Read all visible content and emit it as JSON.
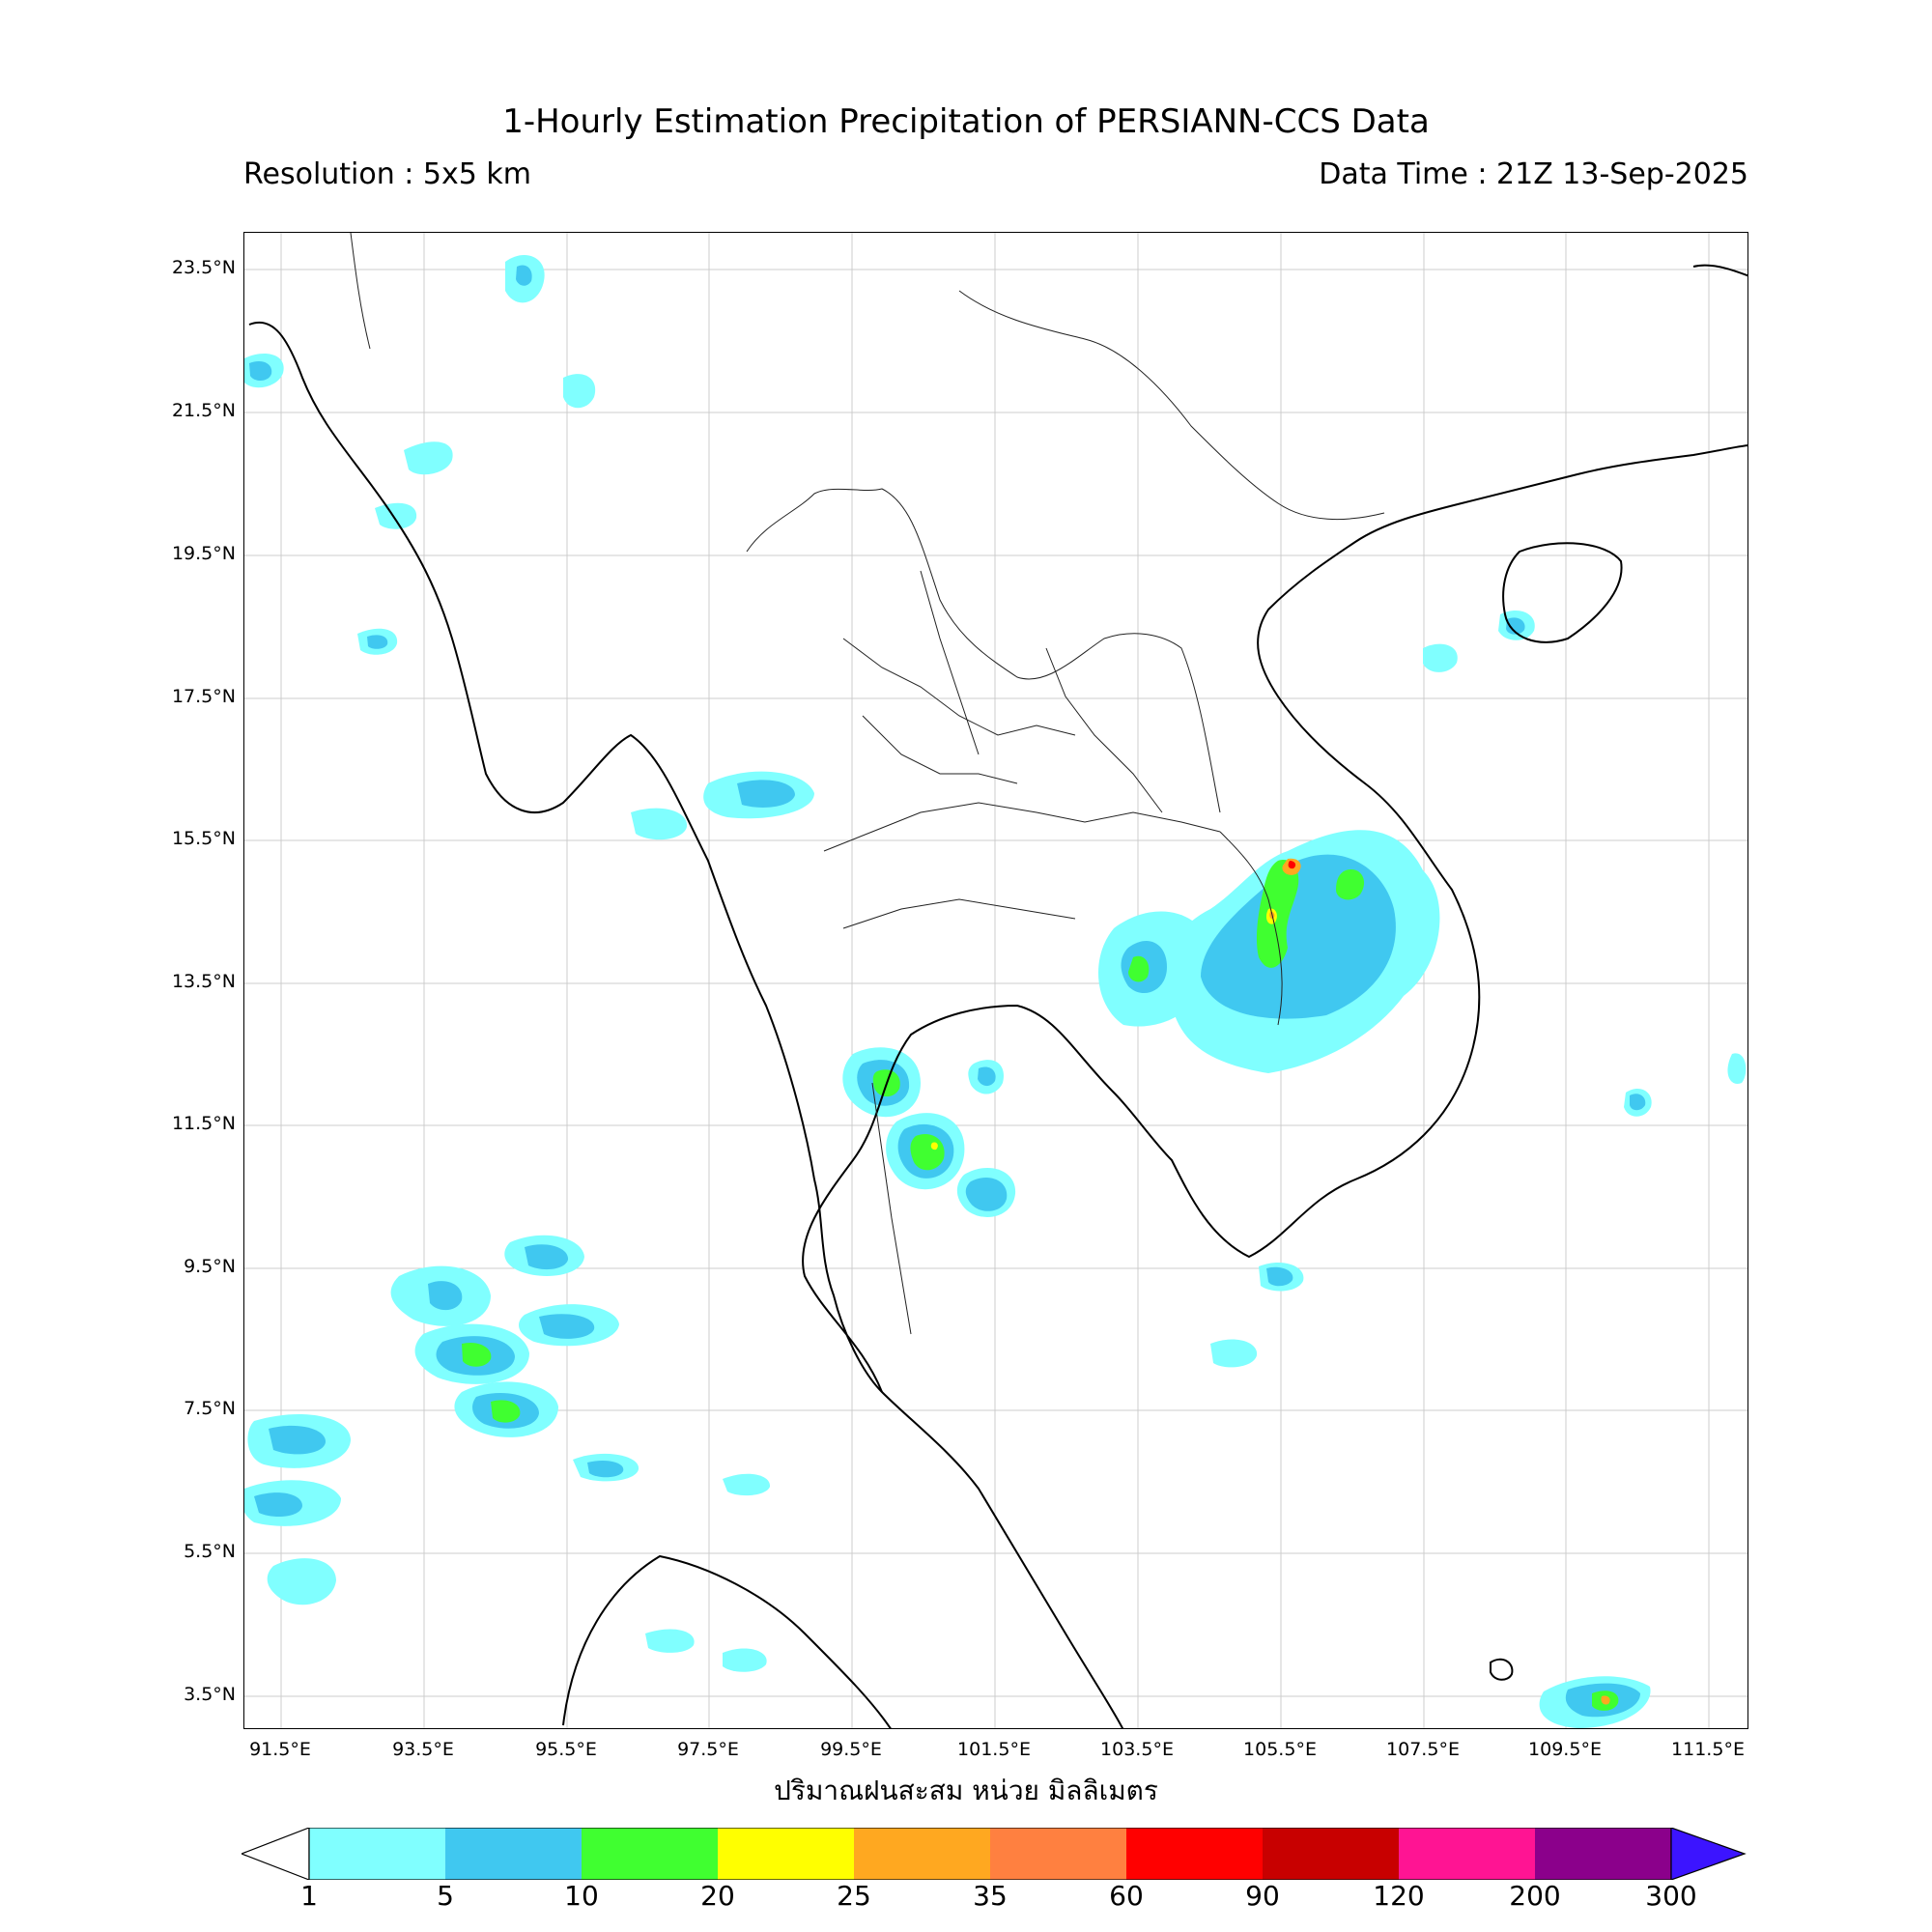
{
  "title": "1-Hourly Estimation Precipitation of PERSIANN-CCS Data",
  "resolution": "Resolution : 5x5 km",
  "data_time": "Data Time : 21Z 13-Sep-2025",
  "unit_label": "ปริมาณฝนสะสม หน่วย มิลลิเมตร",
  "lat_labels": [
    "23.5°N",
    "21.5°N",
    "19.5°N",
    "17.5°N",
    "15.5°N",
    "13.5°N",
    "11.5°N",
    "9.5°N",
    "7.5°N",
    "5.5°N",
    "3.5°N"
  ],
  "lon_labels": [
    "91.5°E",
    "93.5°E",
    "95.5°E",
    "97.5°E",
    "99.5°E",
    "101.5°E",
    "103.5°E",
    "105.5°E",
    "107.5°E",
    "109.5°E",
    "111.5°E"
  ],
  "colorbar": {
    "ticks": [
      "1",
      "5",
      "10",
      "20",
      "25",
      "35",
      "60",
      "90",
      "120",
      "200",
      "300"
    ],
    "colors": [
      "#80ffff",
      "#40c8f0",
      "#40ff30",
      "#ffff00",
      "#ffa820",
      "#ff8040",
      "#ff0000",
      "#c80000",
      "#ff1493",
      "#8b008b",
      "#3c14ff"
    ]
  }
}
